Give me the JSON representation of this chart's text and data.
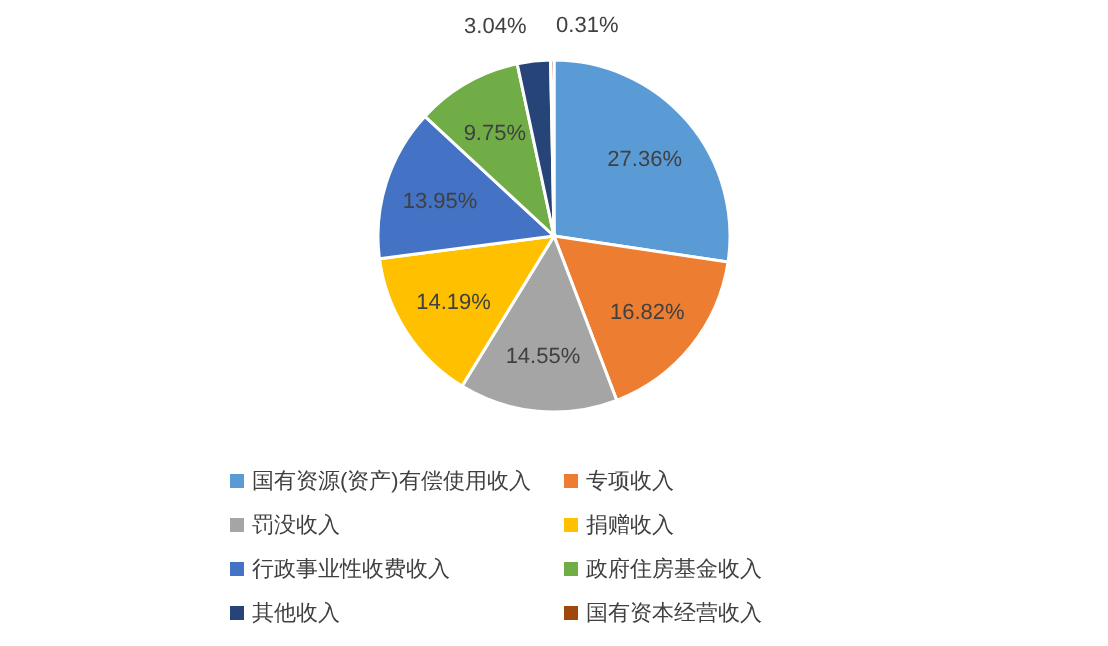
{
  "chart_data": {
    "type": "pie",
    "categories": [
      "国有资源(资产)有偿使用收入",
      "专项收入",
      "罚没收入",
      "捐赠收入",
      "行政事业性收费收入",
      "政府住房基金收入",
      "其他收入",
      "国有资本经营收入"
    ],
    "values": [
      27.36,
      16.82,
      14.55,
      14.19,
      13.95,
      9.75,
      3.04,
      0.31
    ],
    "colors": [
      "#5b9bd5",
      "#ed7d31",
      "#a5a5a5",
      "#ffc000",
      "#4472c4",
      "#70ad47",
      "#264478",
      "#9e480e"
    ],
    "value_labels": [
      "27.36%",
      "16.82%",
      "14.55%",
      "14.19%",
      "13.95%",
      "9.75%",
      "3.04%",
      "0.31%"
    ],
    "legend": "bottom"
  }
}
